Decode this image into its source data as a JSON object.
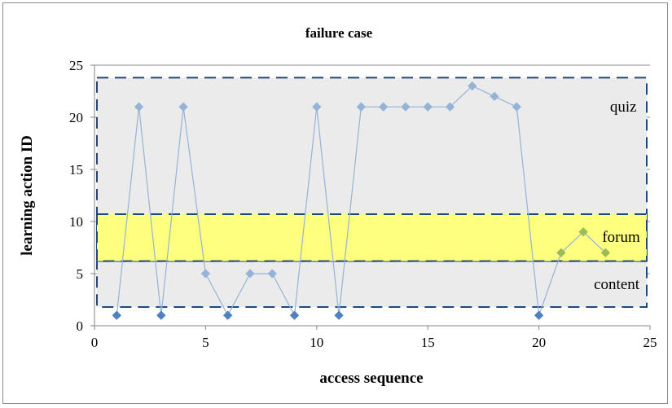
{
  "chart_data": {
    "type": "line",
    "title": "failure case",
    "xlabel": "access sequence",
    "ylabel": "learning action ID",
    "xlim": [
      0,
      25
    ],
    "ylim": [
      0,
      25
    ],
    "xticks": [
      0,
      5,
      10,
      15,
      20,
      25
    ],
    "yticks": [
      0,
      5,
      10,
      15,
      20,
      25
    ],
    "grid": "horizontal",
    "series": [
      {
        "color": "#95b3d7",
        "x": [
          1,
          2,
          3,
          4,
          5,
          6,
          7,
          8,
          9,
          10,
          11,
          12,
          13,
          14,
          15,
          16,
          17,
          18,
          19,
          20,
          21,
          22,
          23
        ],
        "y": [
          1,
          21,
          1,
          21,
          5,
          1,
          5,
          5,
          1,
          21,
          1,
          21,
          21,
          21,
          21,
          21,
          23,
          22,
          21,
          1,
          7,
          9,
          7
        ]
      }
    ],
    "regions": [
      {
        "label": "quiz",
        "y_range": [
          6.2,
          23.8
        ],
        "fill": "#ebebeb"
      },
      {
        "label": "forum",
        "y_range": [
          6.2,
          10.7
        ],
        "fill": "#ffff7f"
      },
      {
        "label": "content",
        "y_range": [
          1.8,
          6.2
        ],
        "fill": "#ebebeb"
      }
    ]
  }
}
